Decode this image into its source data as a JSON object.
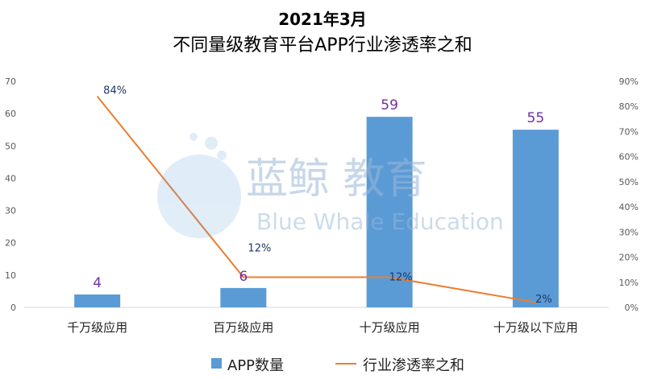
{
  "chart_data": {
    "type": "bar",
    "title": "2021年3月",
    "subtitle": "不同量级教育平台APP行业渗透率之和",
    "categories": [
      "千万级应用",
      "百万级应用",
      "十万级应用",
      "十万级以下应用"
    ],
    "series": [
      {
        "name": "APP数量",
        "type": "bar",
        "axis": "left",
        "values": [
          4,
          6,
          59,
          55
        ]
      },
      {
        "name": "行业渗透率之和",
        "type": "line",
        "axis": "right",
        "values": [
          84,
          12,
          12,
          2
        ]
      }
    ],
    "bar_labels": [
      "4",
      "6",
      "59",
      "55"
    ],
    "line_labels": [
      "84%",
      "12%",
      "12%",
      "2%"
    ],
    "y_left": {
      "min": 0,
      "max": 70,
      "ticks": [
        "0",
        "10",
        "20",
        "30",
        "40",
        "50",
        "60",
        "70"
      ]
    },
    "y_right": {
      "min": 0,
      "max": 90,
      "ticks": [
        "0%",
        "10%",
        "20%",
        "30%",
        "40%",
        "50%",
        "60%",
        "70%",
        "80%",
        "90%"
      ]
    },
    "colors": {
      "bar": "#5b9bd5",
      "line": "#ed7d31",
      "bar_label": "#7030a0",
      "line_label": "#1f3864",
      "axis_text": "#595959"
    },
    "legend": "bottom",
    "grid": false
  },
  "watermark": {
    "cn": "蓝鲸 教育",
    "en": "Blue Whale Education"
  }
}
